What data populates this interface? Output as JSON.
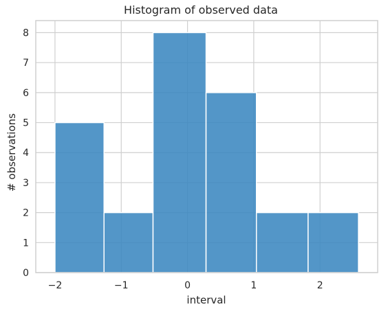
{
  "chart_data": {
    "type": "bar",
    "title": "Histogram of observed data",
    "xlabel": "interval",
    "ylabel": "# observations",
    "bins": [
      {
        "x0": -2.0,
        "x1": -1.26,
        "count": 5
      },
      {
        "x0": -1.26,
        "x1": -0.52,
        "count": 2
      },
      {
        "x0": -0.52,
        "x1": 0.28,
        "count": 8
      },
      {
        "x0": 0.28,
        "x1": 1.04,
        "count": 6
      },
      {
        "x0": 1.04,
        "x1": 1.82,
        "count": 2
      },
      {
        "x0": 1.82,
        "x1": 2.58,
        "count": 2
      }
    ],
    "xlim": [
      -2.29,
      2.87
    ],
    "ylim": [
      0,
      8.4
    ],
    "xticks": [
      -2,
      -1,
      0,
      1,
      2
    ],
    "xtick_labels": [
      "−2",
      "−1",
      "0",
      "1",
      "2"
    ],
    "yticks": [
      0,
      1,
      2,
      3,
      4,
      5,
      6,
      7,
      8
    ],
    "ytick_labels": [
      "0",
      "1",
      "2",
      "3",
      "4",
      "5",
      "6",
      "7",
      "8"
    ],
    "grid": true,
    "bar_color": "#3b87c0",
    "bar_opacity": 0.88
  }
}
